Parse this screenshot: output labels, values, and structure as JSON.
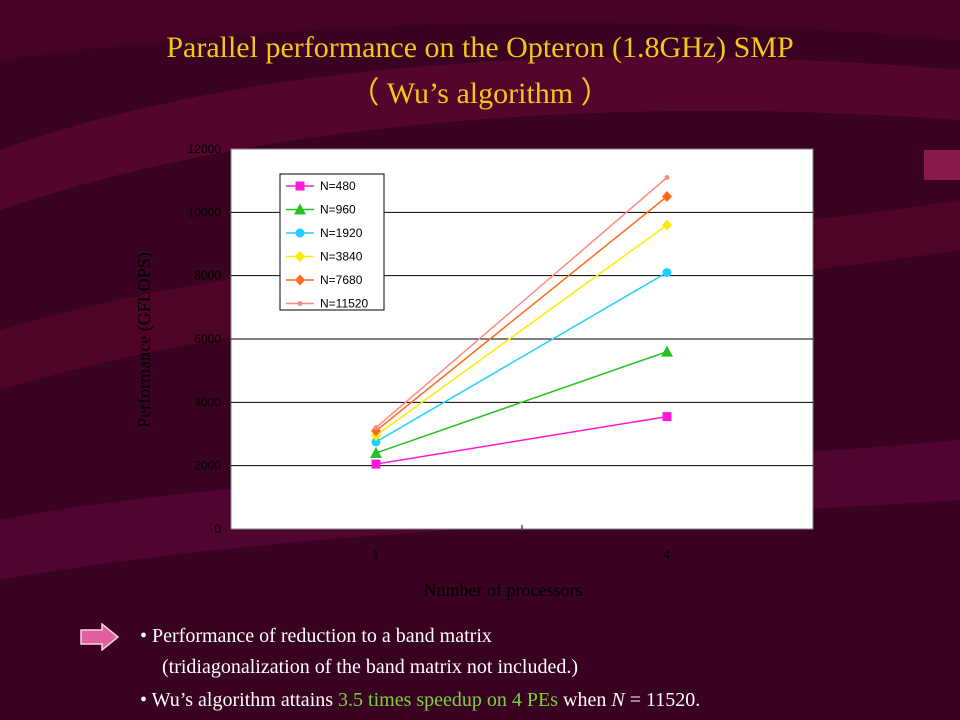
{
  "slide": {
    "title_line1": "Parallel performance on the Opteron (1.8GHz) SMP",
    "title_line2": "（ Wu’s algorithm ）",
    "background_color": "#3a0222",
    "title_color": "#f5c518",
    "highlight_color": "#7ad33a"
  },
  "bullets": {
    "b1": "Performance of reduction to a band matrix",
    "b1_cont": "(tridiagonalization of the band matrix not included.)",
    "b2_pre": "Wu’s algorithm attains ",
    "b2_hl": "3.5 times speedup on 4 PEs",
    "b2_mid": " when ",
    "b2_var": "N",
    "b2_post": " = 11520.",
    "arrow_icon": "arrow-right-icon"
  },
  "chart_data": {
    "type": "line",
    "title": "",
    "xlabel": "Number of processors",
    "ylabel": "Performance (GFLOPS)",
    "categories": [
      "1",
      "4"
    ],
    "ylim": [
      0,
      12000
    ],
    "yticks": [
      "0",
      "2000",
      "4000",
      "6000",
      "8000",
      "10000",
      "12000"
    ],
    "grid": true,
    "legend_position": "top-left",
    "series": [
      {
        "name": "N=480",
        "values": [
          2050,
          3550
        ],
        "color": "#ff19d6",
        "marker": "square"
      },
      {
        "name": "N=960",
        "values": [
          2400,
          5600
        ],
        "color": "#22c21f",
        "marker": "triangle"
      },
      {
        "name": "N=1920",
        "values": [
          2750,
          8100
        ],
        "color": "#1fcfff",
        "marker": "circle"
      },
      {
        "name": "N=3840",
        "values": [
          2950,
          9600
        ],
        "color": "#ffea00",
        "marker": "diamond"
      },
      {
        "name": "N=7680",
        "values": [
          3100,
          10500
        ],
        "color": "#ff6a1a",
        "marker": "diamond"
      },
      {
        "name": "N=11520",
        "values": [
          3200,
          11100
        ],
        "color": "#ff8a80",
        "marker": "dot"
      }
    ]
  }
}
